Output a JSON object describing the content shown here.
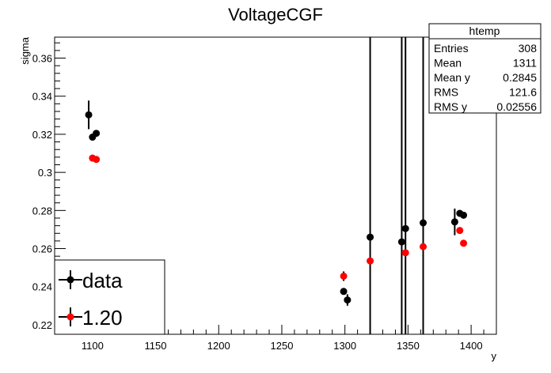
{
  "chart_data": {
    "type": "scatter",
    "title": "VoltageCGF",
    "xlabel": "y",
    "ylabel": "sigma",
    "xlim": [
      1070,
      1420
    ],
    "ylim": [
      0.215,
      0.371
    ],
    "x_ticks": [
      1100,
      1150,
      1200,
      1250,
      1300,
      1350,
      1400
    ],
    "y_ticks": [
      0.22,
      0.24,
      0.26,
      0.28,
      0.3,
      0.32,
      0.34,
      0.36
    ],
    "x_tick_labels": [
      "1100",
      "1150",
      "1200",
      "1250",
      "1300",
      "1350",
      "1400"
    ],
    "y_tick_labels": [
      "0.22",
      "0.24",
      "0.26",
      "0.28",
      "0.3",
      "0.32",
      "0.34",
      "0.36"
    ],
    "grid": false,
    "legend_position": "bottom-left",
    "series": [
      {
        "name": "data",
        "color": "#000000",
        "points": [
          {
            "x": 1097,
            "y": 0.3302,
            "err": 0.0075
          },
          {
            "x": 1100,
            "y": 0.3185,
            "err": 0.0015
          },
          {
            "x": 1103,
            "y": 0.3205,
            "err": 0.0015
          },
          {
            "x": 1299,
            "y": 0.2375,
            "err": 0.0015
          },
          {
            "x": 1302,
            "y": 0.233,
            "err": 0.003
          },
          {
            "x": 1320,
            "y": 0.266,
            "err": 0.2
          },
          {
            "x": 1345,
            "y": 0.2635,
            "err": 0.2
          },
          {
            "x": 1348,
            "y": 0.2705,
            "err": 0.2
          },
          {
            "x": 1362,
            "y": 0.2735,
            "err": 0.2
          },
          {
            "x": 1387,
            "y": 0.274,
            "err": 0.007
          },
          {
            "x": 1391,
            "y": 0.2785,
            "err": 0.001
          },
          {
            "x": 1394,
            "y": 0.2775,
            "err": 0.001
          }
        ]
      },
      {
        "name": "1.20",
        "color": "#ff0000",
        "points": [
          {
            "x": 1100,
            "y": 0.3075,
            "err": 0.001
          },
          {
            "x": 1103,
            "y": 0.3068,
            "err": 0.001
          },
          {
            "x": 1299,
            "y": 0.2455,
            "err": 0.0025
          },
          {
            "x": 1320,
            "y": 0.2535,
            "err": 0.001
          },
          {
            "x": 1348,
            "y": 0.2578,
            "err": 0.001
          },
          {
            "x": 1362,
            "y": 0.261,
            "err": 0.001
          },
          {
            "x": 1391,
            "y": 0.2695,
            "err": 0.0012
          },
          {
            "x": 1394,
            "y": 0.2628,
            "err": 0.0012
          }
        ]
      }
    ],
    "stats_box": {
      "title": "htemp",
      "rows": [
        {
          "label": "Entries",
          "value": "308"
        },
        {
          "label": "Mean",
          "value": "1311"
        },
        {
          "label": "Mean y",
          "value": "0.2845"
        },
        {
          "label": "RMS",
          "value": "121.6"
        },
        {
          "label": "RMS y",
          "value": "0.02556"
        }
      ]
    }
  }
}
